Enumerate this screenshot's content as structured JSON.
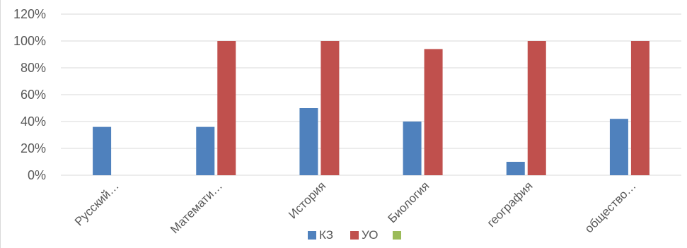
{
  "chart_data": {
    "type": "bar",
    "categories": [
      "Русский…",
      "Математи…",
      "История",
      "Биология",
      "география",
      "общество…"
    ],
    "series": [
      {
        "name": "КЗ",
        "color": "#4F81BD",
        "values": [
          36,
          36,
          50,
          40,
          10,
          42
        ]
      },
      {
        "name": "УО",
        "color": "#C0504D",
        "values": [
          null,
          100,
          100,
          94,
          100,
          100
        ]
      },
      {
        "name": "",
        "color": "#9BBB59",
        "values": [
          null,
          null,
          null,
          null,
          null,
          null
        ]
      }
    ],
    "y_ticks": [
      "0%",
      "20%",
      "40%",
      "60%",
      "80%",
      "100%",
      "120%"
    ],
    "ylim": [
      0,
      120
    ],
    "y_unit": "%",
    "grid": true,
    "legend_position": "bottom",
    "title": "",
    "xlabel": "",
    "ylabel": ""
  }
}
